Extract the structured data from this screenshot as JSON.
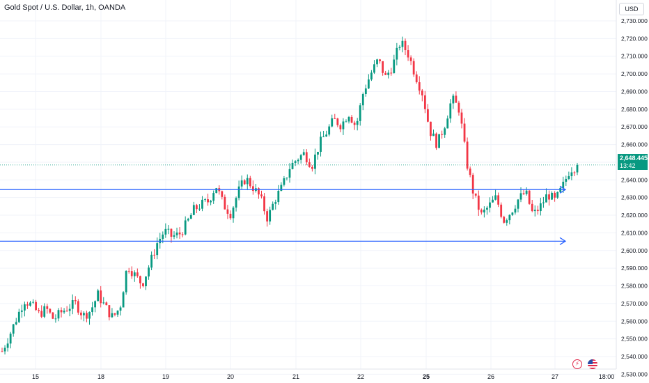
{
  "header": {
    "title": "Gold Spot / U.S. Dollar, 1h, OANDA",
    "currency": "USD"
  },
  "price_tag": {
    "price": "2,648.445",
    "countdown": "13:42"
  },
  "icons": {
    "flash": "lightning-icon",
    "flag": "us-flag-icon"
  },
  "colors": {
    "up": "#089981",
    "down": "#f23645",
    "line": "#2962ff",
    "grid": "#f0f3fa"
  },
  "chart_data": {
    "type": "candlestick",
    "yaxis": {
      "min": 2525,
      "max": 2735,
      "ticks": [
        "2,530.000",
        "2,540.000",
        "2,550.000",
        "2,560.000",
        "2,570.000",
        "2,580.000",
        "2,590.000",
        "2,600.000",
        "2,610.000",
        "2,620.000",
        "2,630.000",
        "2,640.000",
        "2,650.000",
        "2,660.000",
        "2,670.000",
        "2,680.000",
        "2,690.000",
        "2,700.000",
        "2,710.000",
        "2,720.000",
        "2,730.000"
      ]
    },
    "xaxis": {
      "ticks": [
        "15",
        "18",
        "19",
        "20",
        "21",
        "22",
        "25",
        "26",
        "27",
        "18:00"
      ]
    },
    "last_price": 2648.445,
    "horizontal_lines": [
      {
        "label": "resistance-line",
        "price": 2634.5
      },
      {
        "label": "support-line",
        "price": 2605.3
      }
    ],
    "candles_close_path": [
      2543,
      2552,
      2562,
      2572,
      2569,
      2564,
      2567,
      2561,
      2565,
      2568,
      2570,
      2563,
      2566,
      2575,
      2568,
      2562,
      2568,
      2592,
      2586,
      2581,
      2592,
      2604,
      2611,
      2608,
      2609,
      2615,
      2623,
      2626,
      2628,
      2637,
      2626,
      2621,
      2633,
      2641,
      2636,
      2630,
      2618,
      2629,
      2636,
      2647,
      2652,
      2655,
      2648,
      2660,
      2667,
      2674,
      2671,
      2678,
      2670,
      2690,
      2700,
      2708,
      2698,
      2705,
      2718,
      2712,
      2700,
      2689,
      2668,
      2660,
      2671,
      2686,
      2680,
      2650,
      2631,
      2620,
      2625,
      2630,
      2617,
      2622,
      2629,
      2633,
      2620,
      2625,
      2632,
      2628,
      2636,
      2646,
      2648
    ]
  }
}
